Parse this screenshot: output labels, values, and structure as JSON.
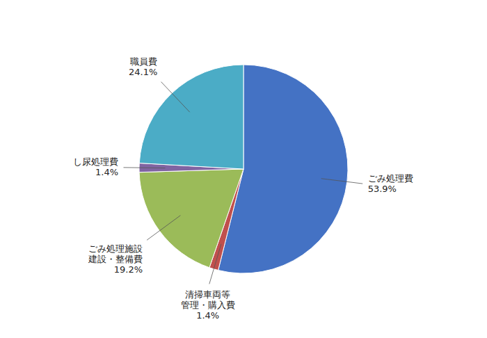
{
  "chart_data": {
    "type": "pie",
    "categories": [
      "ごみ処理費",
      "清掃車両等\n管理・購入費",
      "ごみ処理施設\n建設・整備費",
      "し尿処理費",
      "職員費"
    ],
    "values": [
      53.9,
      1.4,
      19.2,
      1.4,
      24.1
    ],
    "value_labels": [
      "53.9%",
      "1.4%",
      "19.2%",
      "1.4%",
      "24.1%"
    ],
    "colors": [
      "#4472C4",
      "#C0504D",
      "#9BBB59",
      "#8064A2",
      "#4BACC6"
    ],
    "data_labels": true
  }
}
